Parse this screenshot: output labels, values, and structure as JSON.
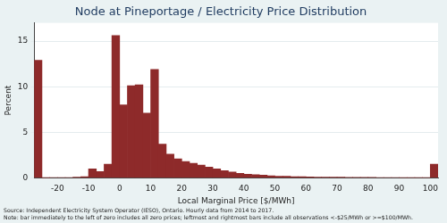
{
  "chart_data": {
    "type": "histogram",
    "title": "Node at Pineportage / Electricity Price Distribution",
    "x_label": "Local Marginal Price [$/MWh]",
    "y_label": "Percent",
    "annotations": [
      "Source: Independent Electricity System Operator (IESO), Ontario. Hourly data from 2014 to 2017.",
      "Note: bar immediately to the left of zero includes all zero prices; leftmost and rightmost bars include all observations <-$25/MWh or >=$100/MWh."
    ],
    "bins": [
      -27.5,
      -25,
      -22.5,
      -20,
      -17.5,
      -15,
      -12.5,
      -10,
      -7.5,
      -5,
      -2.5,
      0,
      2.5,
      5,
      7.5,
      10,
      12.5,
      15,
      17.5,
      20,
      22.5,
      25,
      27.5,
      30,
      32.5,
      35,
      37.5,
      40,
      42.5,
      45,
      47.5,
      50,
      52.5,
      55,
      57.5,
      60,
      62.5,
      65,
      67.5,
      70,
      72.5,
      75,
      77.5,
      80,
      82.5,
      85,
      87.5,
      90,
      92.5,
      95,
      97.5,
      100,
      102.5
    ],
    "values": [
      12.9,
      0.02,
      0.05,
      0.05,
      0.05,
      0.08,
      0.15,
      1.0,
      0.7,
      1.5,
      15.6,
      8.0,
      10.1,
      10.2,
      7.1,
      11.9,
      3.7,
      2.6,
      2.1,
      1.8,
      1.6,
      1.4,
      1.2,
      1.0,
      0.8,
      0.65,
      0.5,
      0.4,
      0.35,
      0.3,
      0.25,
      0.2,
      0.2,
      0.15,
      0.15,
      0.12,
      0.1,
      0.1,
      0.08,
      0.08,
      0.07,
      0.07,
      0.06,
      0.06,
      0.05,
      0.05,
      0.05,
      0.04,
      0.04,
      0.04,
      0.03,
      1.5
    ],
    "color": "#8e2a2a",
    "xlim": [
      -27.5,
      102.5
    ],
    "xticks": [
      -20,
      -10,
      0,
      10,
      20,
      30,
      40,
      50,
      60,
      70,
      80,
      90,
      100
    ],
    "ylim": [
      0,
      17
    ],
    "yticks": [
      0,
      5,
      10,
      15
    ],
    "grid": true
  }
}
